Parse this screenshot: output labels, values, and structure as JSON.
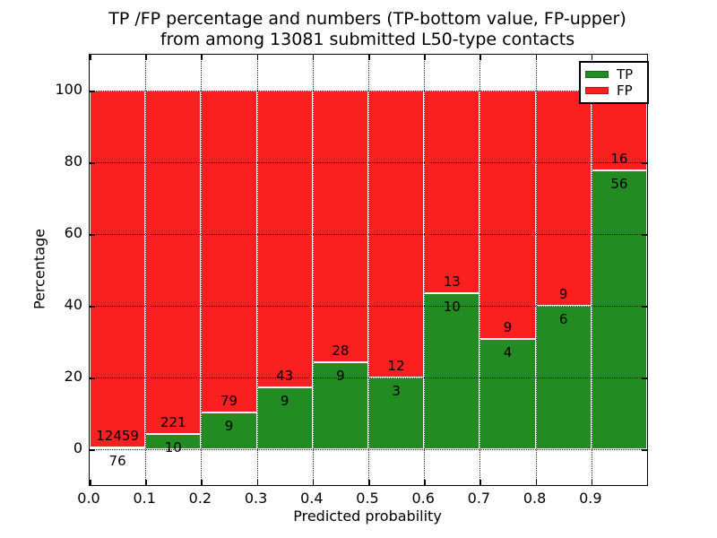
{
  "title": {
    "line1": "TP /FP percentage and numbers (TP-bottom value, FP-upper)",
    "line2": "from among 13081 submitted L50-type contacts"
  },
  "axes": {
    "xlabel": "Predicted probability",
    "ylabel": "Percentage",
    "xtick_labels": [
      "0.0",
      "0.1",
      "0.2",
      "0.3",
      "0.4",
      "0.5",
      "0.6",
      "0.7",
      "0.8",
      "0.9"
    ],
    "ytick_labels": [
      "0",
      "20",
      "40",
      "60",
      "80",
      "100"
    ]
  },
  "legend": {
    "items": [
      {
        "label": "TP",
        "color": "#228b22"
      },
      {
        "label": "FP",
        "color": "#fb2020"
      }
    ],
    "position": "upper right"
  },
  "chart_data": {
    "type": "bar",
    "stacked": true,
    "title": "TP /FP percentage and numbers (TP-bottom value, FP-upper)\nfrom among 13081 submitted L50-type contacts",
    "xlabel": "Predicted probability",
    "ylabel": "Percentage",
    "total_contacts": 13081,
    "bin_edges": [
      0.0,
      0.1,
      0.2,
      0.3,
      0.4,
      0.5,
      0.6,
      0.7,
      0.8,
      0.9,
      1.0
    ],
    "categories": [
      "0.0-0.1",
      "0.1-0.2",
      "0.2-0.3",
      "0.3-0.4",
      "0.4-0.5",
      "0.5-0.6",
      "0.6-0.7",
      "0.7-0.8",
      "0.8-0.9",
      "0.9-1.0"
    ],
    "series": [
      {
        "name": "TP",
        "color": "#228b22",
        "counts": [
          76,
          10,
          9,
          9,
          9,
          3,
          10,
          4,
          6,
          56
        ],
        "percent": [
          0.61,
          4.33,
          10.23,
          17.31,
          24.32,
          20.0,
          43.48,
          30.77,
          40.0,
          77.78
        ]
      },
      {
        "name": "FP",
        "color": "#fb2020",
        "counts": [
          12459,
          221,
          79,
          43,
          28,
          12,
          13,
          9,
          9,
          16
        ],
        "percent": [
          99.39,
          95.67,
          89.77,
          82.69,
          75.68,
          80.0,
          56.52,
          69.23,
          60.0,
          22.22
        ]
      }
    ],
    "xlim": [
      0.0,
      1.0
    ],
    "ylim": [
      -10,
      110
    ],
    "xticks": [
      0.0,
      0.1,
      0.2,
      0.3,
      0.4,
      0.5,
      0.6,
      0.7,
      0.8,
      0.9
    ],
    "yticks": [
      0,
      20,
      40,
      60,
      80,
      100
    ],
    "grid": "dotted black, drawn over bars",
    "bar_edge_color": "#ffffff",
    "legend_position": "upper right",
    "annotation_rule": "TP count below segment boundary, FP count above segment boundary"
  }
}
